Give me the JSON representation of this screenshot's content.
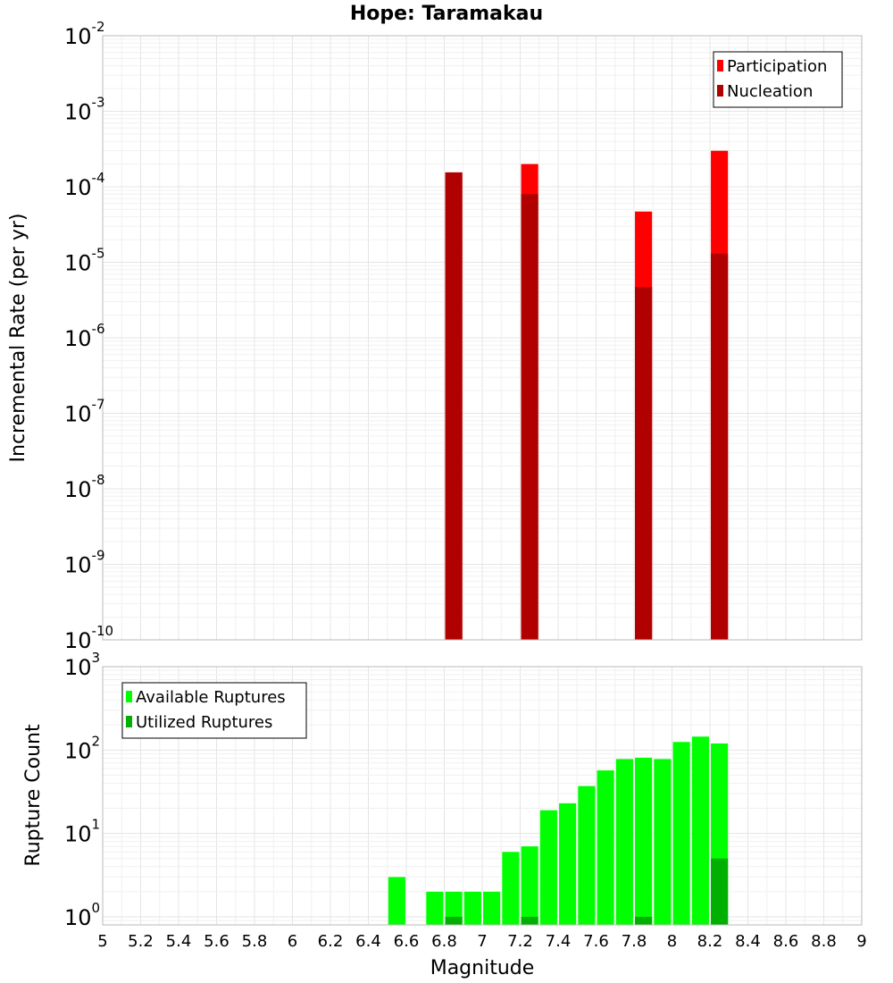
{
  "chart_data": [
    {
      "type": "bar",
      "title": "Hope: Taramakau",
      "ylabel": "Incremental Rate (per yr)",
      "xlabel": "",
      "xlim": [
        5,
        9
      ],
      "ylim": [
        1e-10,
        0.01
      ],
      "yscale": "log",
      "grid": true,
      "legend_position": "top-right",
      "bar_width": 0.09,
      "series": [
        {
          "name": "Participation",
          "color": "#ff0000",
          "x": [
            6.85,
            7.25,
            7.85,
            8.25
          ],
          "values": [
            0.000155,
            0.0002,
            4.7e-05,
            0.0003
          ]
        },
        {
          "name": "Nucleation",
          "color": "#b00000",
          "x": [
            6.85,
            7.25,
            7.85,
            8.25
          ],
          "values": [
            0.000155,
            8e-05,
            4.7e-06,
            1.3e-05
          ]
        }
      ],
      "y_tick_labels": [
        {
          "base": "10",
          "exp": "-10"
        },
        {
          "base": "10",
          "exp": "-9"
        },
        {
          "base": "10",
          "exp": "-8"
        },
        {
          "base": "10",
          "exp": "-7"
        },
        {
          "base": "10",
          "exp": "-6"
        },
        {
          "base": "10",
          "exp": "-5"
        },
        {
          "base": "10",
          "exp": "-4"
        },
        {
          "base": "10",
          "exp": "-3"
        },
        {
          "base": "10",
          "exp": "-2"
        }
      ]
    },
    {
      "type": "bar",
      "title": "",
      "ylabel": "Rupture Count",
      "xlabel": "Magnitude",
      "xlim": [
        5,
        9
      ],
      "ylim": [
        0.8,
        1000
      ],
      "yscale": "log",
      "grid": true,
      "legend_position": "top-left",
      "bar_width": 0.09,
      "series": [
        {
          "name": "Available Ruptures",
          "color": "#00ff00",
          "x": [
            6.55,
            6.75,
            6.85,
            6.95,
            7.05,
            7.15,
            7.25,
            7.35,
            7.45,
            7.55,
            7.65,
            7.75,
            7.85,
            7.95,
            8.05,
            8.15,
            8.25
          ],
          "values": [
            3,
            2,
            2,
            2,
            2,
            6,
            7,
            19,
            23,
            37,
            57,
            78,
            81,
            78,
            125,
            145,
            120
          ]
        },
        {
          "name": "Utilized Ruptures",
          "color": "#00b000",
          "x": [
            6.85,
            7.25,
            7.85,
            8.25
          ],
          "values": [
            1,
            1,
            1,
            5
          ]
        }
      ],
      "y_tick_labels": [
        {
          "base": "10",
          "exp": "0"
        },
        {
          "base": "10",
          "exp": "1"
        },
        {
          "base": "10",
          "exp": "2"
        },
        {
          "base": "10",
          "exp": "3"
        }
      ],
      "x_tick_labels": [
        "5",
        "5.2",
        "5.4",
        "5.6",
        "5.8",
        "6",
        "6.2",
        "6.4",
        "6.6",
        "6.8",
        "7",
        "7.2",
        "7.4",
        "7.6",
        "7.8",
        "8",
        "8.2",
        "8.4",
        "8.6",
        "8.8",
        "9"
      ]
    }
  ]
}
